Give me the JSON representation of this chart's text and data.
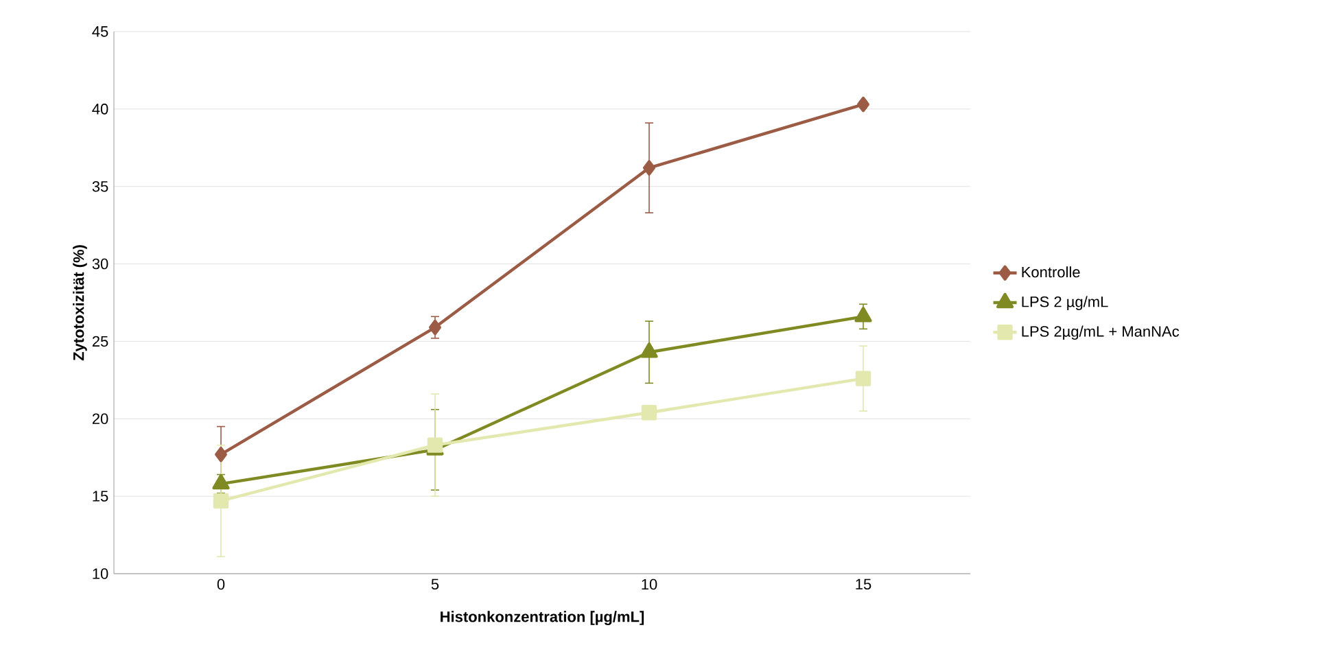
{
  "chart_data": {
    "type": "line",
    "xlabel": "Histonkonzentration [µg/mL]",
    "ylabel": "Zytotoxizität (%)",
    "categories": [
      "0",
      "5",
      "10",
      "15"
    ],
    "ylim": [
      10,
      45
    ],
    "yticks": [
      10,
      15,
      20,
      25,
      30,
      35,
      40,
      45
    ],
    "grid": "y",
    "legend": "right",
    "line_style": "solid",
    "series": [
      {
        "name": "Kontrolle",
        "color": "#9b5b45",
        "marker": "diamond",
        "values": [
          17.7,
          25.9,
          36.2,
          40.3
        ],
        "errors": [
          1.8,
          0.7,
          2.9,
          0.2
        ]
      },
      {
        "name": "LPS 2 µg/mL",
        "color": "#7f8a22",
        "marker": "triangle",
        "values": [
          15.8,
          18.0,
          24.3,
          26.6
        ],
        "errors": [
          0.6,
          2.6,
          2.0,
          0.8
        ]
      },
      {
        "name": "LPS 2µg/mL + ManNAc",
        "color": "#e2e8ae",
        "marker": "square",
        "values": [
          14.7,
          18.3,
          20.4,
          22.6
        ],
        "errors": [
          3.6,
          3.3,
          null,
          2.1
        ]
      }
    ]
  }
}
